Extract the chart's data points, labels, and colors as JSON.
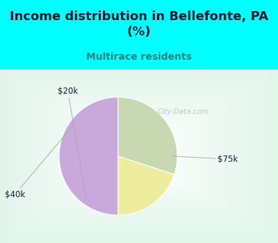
{
  "title": "Income distribution in Bellefonte, PA\n(%)",
  "subtitle": "Multirace residents",
  "slices": [
    {
      "label": "$75k",
      "value": 50,
      "color": "#C9A8DC"
    },
    {
      "label": "$20k",
      "value": 20,
      "color": "#EEED9E"
    },
    {
      "label": "$40k",
      "value": 30,
      "color": "#C8D8B0"
    }
  ],
  "startangle": 90,
  "background_color": "#00FFFF",
  "chart_bg_color": "#E8F5F0",
  "title_color": "#1a1a2e",
  "subtitle_color": "#2a8080",
  "label_color": "#1a1a2e",
  "watermark": "City-Data.com",
  "title_fontsize": 13,
  "subtitle_fontsize": 10,
  "label_fontsize": 8.5
}
